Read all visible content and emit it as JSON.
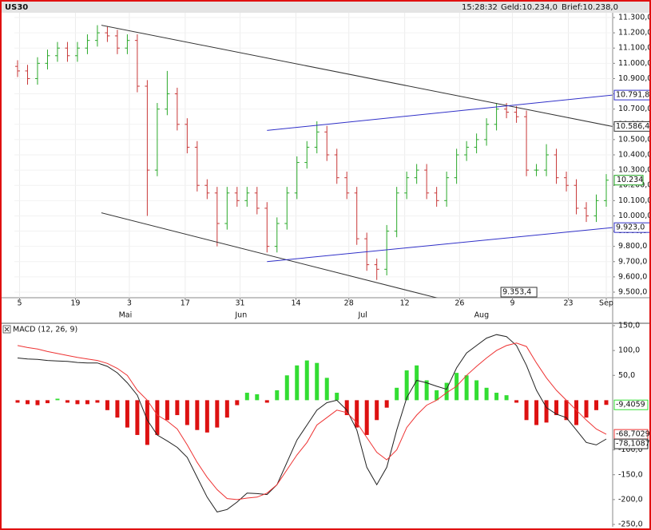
{
  "header": {
    "symbol": "US30",
    "time": "15:28:32",
    "bid": "Geld:10.234,0",
    "ask": "Brief:10.238,0"
  },
  "chart_data": [
    {
      "type": "ohlc",
      "open": [
        10980,
        10950,
        10900,
        11000,
        11050,
        11100,
        11050,
        11100,
        11150,
        11200,
        11180,
        11100,
        11150,
        10850,
        10300,
        10700,
        10800,
        10600,
        10450,
        10200,
        10150,
        9950,
        10150,
        10100,
        10150,
        10050,
        9800,
        9950,
        10150,
        10350,
        10450,
        10550,
        10400,
        10250,
        10150,
        9850,
        9680,
        9650,
        9900,
        10150,
        10250,
        10300,
        10150,
        10100,
        10250,
        10400,
        10450,
        10500,
        10600,
        10700,
        10680,
        10650,
        10300,
        10300,
        10400,
        10250,
        10200,
        10050,
        10000,
        10100
      ],
      "high": [
        11020,
        10990,
        11040,
        11090,
        11140,
        11140,
        11140,
        11190,
        11250,
        11240,
        11220,
        11190,
        11190,
        10890,
        10740,
        10950,
        10840,
        10640,
        10490,
        10240,
        10190,
        10190,
        10190,
        10190,
        10190,
        10090,
        9990,
        10190,
        10390,
        10490,
        10620,
        10590,
        10440,
        10290,
        10190,
        9890,
        9720,
        9940,
        10190,
        10290,
        10340,
        10340,
        10190,
        10290,
        10440,
        10490,
        10540,
        10640,
        10740,
        10740,
        10720,
        10690,
        10340,
        10470,
        10440,
        10290,
        10240,
        10090,
        10140,
        10274
      ],
      "low": [
        10910,
        10860,
        10860,
        10960,
        11010,
        11010,
        11010,
        11060,
        11110,
        11140,
        11060,
        11060,
        10810,
        10000,
        10260,
        10660,
        10560,
        10410,
        10160,
        10110,
        9800,
        9910,
        10060,
        10060,
        10010,
        9760,
        9760,
        9910,
        10110,
        10310,
        10410,
        10360,
        10210,
        10110,
        9810,
        9640,
        9580,
        9610,
        9860,
        10110,
        10210,
        10110,
        10060,
        10060,
        10210,
        10360,
        10410,
        10460,
        10560,
        10640,
        10610,
        10260,
        10260,
        10260,
        10210,
        10160,
        10010,
        9960,
        9960,
        10060
      ],
      "close": [
        10950,
        10900,
        11000,
        11050,
        11100,
        11050,
        11100,
        11150,
        11200,
        11180,
        11100,
        11150,
        10850,
        10300,
        10700,
        10800,
        10600,
        10450,
        10200,
        10150,
        9950,
        10150,
        10100,
        10150,
        10050,
        9800,
        9950,
        10150,
        10350,
        10450,
        10550,
        10400,
        10250,
        10150,
        9850,
        9680,
        9650,
        9900,
        10150,
        10250,
        10300,
        10150,
        10100,
        10250,
        10400,
        10450,
        10500,
        10600,
        10700,
        10680,
        10650,
        10300,
        10300,
        10400,
        10250,
        10200,
        10050,
        10000,
        10100,
        10234
      ],
      "last_label": "10.234",
      "up_color": "#2aa82a",
      "down_color": "#c83838",
      "last_color": "#19a019",
      "xlim": [
        0,
        59
      ],
      "xticks": [
        {
          "value": 0.2,
          "label": "5"
        },
        {
          "value": 5.8,
          "label": "19"
        },
        {
          "value": 11.2,
          "label": "3"
        },
        {
          "value": 16.8,
          "label": "17"
        },
        {
          "value": 22.3,
          "label": "31"
        },
        {
          "value": 27.9,
          "label": "14"
        },
        {
          "value": 33.2,
          "label": "28"
        },
        {
          "value": 38.8,
          "label": "12"
        },
        {
          "value": 44.3,
          "label": "26"
        },
        {
          "value": 49.6,
          "label": "9"
        },
        {
          "value": 55.2,
          "label": "23"
        },
        {
          "value": 59,
          "label": "Sep"
        }
      ],
      "months": [
        {
          "value": 10.8,
          "label": "Mai"
        },
        {
          "value": 22.4,
          "label": "Jun"
        },
        {
          "value": 34.6,
          "label": "Jul"
        },
        {
          "value": 46.5,
          "label": "Aug"
        }
      ],
      "ylim": [
        9500,
        11300
      ],
      "yticks": [
        {
          "value": 11300,
          "label": "11.300,0"
        },
        {
          "value": 11200,
          "label": "11.200,0"
        },
        {
          "value": 11100,
          "label": "11.100,0"
        },
        {
          "value": 11000,
          "label": "11.000,0"
        },
        {
          "value": 10900,
          "label": "10.900,0"
        },
        {
          "value": 10800,
          "label": "10.800,0"
        },
        {
          "value": 10700,
          "label": "10.700,0"
        },
        {
          "value": 10600,
          "label": "10.600,0"
        },
        {
          "value": 10500,
          "label": "10.500,0"
        },
        {
          "value": 10400,
          "label": "10.400,0"
        },
        {
          "value": 10300,
          "label": "10.300,0"
        },
        {
          "value": 10200,
          "label": "10.200,0"
        },
        {
          "value": 10100,
          "label": "10.100,0"
        },
        {
          "value": 10000,
          "label": "10.000,0"
        },
        {
          "value": 9900,
          "label": "9.900,0"
        },
        {
          "value": 9800,
          "label": "9.800,0"
        },
        {
          "value": 9700,
          "label": "9.700,0"
        },
        {
          "value": 9600,
          "label": "9.600,0"
        },
        {
          "value": 9500,
          "label": "9.500,0"
        }
      ],
      "lines": [
        {
          "color": "#333333",
          "from": [
            8.4,
            11250
          ],
          "to": [
            59.6,
            10586.4
          ],
          "label": "10.586,4"
        },
        {
          "color": "#333333",
          "from": [
            8.4,
            10020
          ],
          "to": [
            48.6,
            9353.4
          ],
          "label": "9.353,4"
        },
        {
          "color": "#3030c8",
          "from": [
            25,
            10560
          ],
          "to": [
            59.6,
            10791.8
          ],
          "label": "10.791,8"
        },
        {
          "color": "#3030c8",
          "from": [
            25,
            9700
          ],
          "to": [
            59.6,
            9923
          ],
          "label": "9.923,0"
        }
      ]
    },
    {
      "type": "macd",
      "title": "MACD (12, 26, 9)",
      "histogram": {
        "values": [
          -5,
          -8,
          -10,
          -6,
          3,
          -5,
          -8,
          -8,
          -5,
          -20,
          -35,
          -55,
          -70,
          -90,
          -70,
          -40,
          -30,
          -50,
          -60,
          -65,
          -55,
          -35,
          -10,
          15,
          12,
          -5,
          20,
          50,
          70,
          80,
          75,
          45,
          15,
          -30,
          -55,
          -70,
          -40,
          -15,
          25,
          60,
          70,
          40,
          20,
          35,
          55,
          50,
          40,
          25,
          15,
          10,
          -5,
          -40,
          -50,
          -45,
          -30,
          -40,
          -50,
          -35,
          -20,
          -9.4059
        ],
        "positive_color": "#33dd33",
        "negative_color": "#dd1111",
        "last_label": "-9,4059"
      },
      "series": [
        {
          "color": "#222222",
          "values": [
            85,
            83,
            82,
            80,
            79,
            78,
            76,
            75,
            75,
            68,
            55,
            35,
            10,
            -40,
            -70,
            -82,
            -95,
            -115,
            -155,
            -195,
            -225,
            -220,
            -205,
            -187,
            -188,
            -190,
            -170,
            -125,
            -80,
            -50,
            -20,
            -5,
            0,
            -20,
            -60,
            -135,
            -170,
            -135,
            -60,
            5,
            40,
            35,
            28,
            22,
            65,
            95,
            110,
            125,
            132,
            128,
            110,
            70,
            20,
            -15,
            -28,
            -35,
            -60,
            -85,
            -90,
            -78.1087
          ],
          "last_label": "-78,1087"
        },
        {
          "color": "#ee3333",
          "values": [
            110,
            106,
            103,
            98,
            94,
            90,
            86,
            83,
            80,
            74,
            64,
            50,
            20,
            0,
            -30,
            -42,
            -58,
            -90,
            -125,
            -155,
            -180,
            -198,
            -200,
            -197,
            -195,
            -187,
            -170,
            -140,
            -110,
            -85,
            -50,
            -35,
            -20,
            -25,
            -45,
            -75,
            -105,
            -120,
            -100,
            -55,
            -30,
            -10,
            0,
            15,
            28,
            50,
            68,
            85,
            100,
            110,
            115,
            108,
            75,
            45,
            20,
            0,
            -20,
            -40,
            -58,
            -68.7029
          ],
          "last_label": "-68,7029"
        }
      ],
      "ylim": [
        -250,
        150
      ],
      "yticks": [
        {
          "value": 150,
          "label": "150,0"
        },
        {
          "value": 100,
          "label": "100,0"
        },
        {
          "value": 50,
          "label": "50,0"
        },
        {
          "value": -100,
          "label": "-100,0"
        },
        {
          "value": -150,
          "label": "-150,0"
        },
        {
          "value": -200,
          "label": "-200,0"
        },
        {
          "value": -250,
          "label": "-250,0"
        }
      ]
    }
  ]
}
